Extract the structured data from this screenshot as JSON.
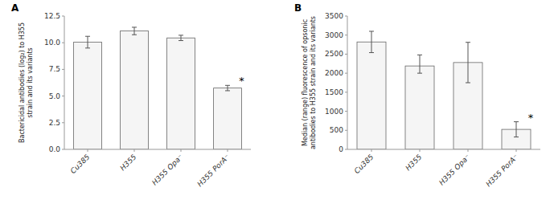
{
  "chart_data": [
    {
      "type": "bar",
      "title": "A",
      "categories": [
        "Cu385",
        "H355",
        "H355 Opa⁻",
        "H355 PorA⁻"
      ],
      "values": [
        10.05,
        11.1,
        10.45,
        5.75
      ],
      "errors_upper": [
        0.55,
        0.35,
        0.25,
        0.25
      ],
      "errors_lower": [
        0.55,
        0.35,
        0.25,
        0.25
      ],
      "annotations": [
        {
          "text": "*",
          "category": "H355 PorA⁻"
        }
      ],
      "ylabel": "Bactericidal antibodies (log₂) to H355\nstrain and its variants",
      "ylim": [
        0,
        12.5
      ],
      "yticks": [
        {
          "value": 0,
          "label": "0.0"
        },
        2.5,
        {
          "value": 5,
          "label": "5.0"
        },
        7.5,
        {
          "value": 10,
          "label": "10.0"
        },
        12.5
      ],
      "color": "#f5f5f5"
    },
    {
      "type": "bar",
      "title": "B",
      "categories": [
        "Cu385",
        "H355",
        "H355 Opa⁻",
        "H355 PorA⁻"
      ],
      "values": [
        2820,
        2190,
        2280,
        525
      ],
      "errors_upper": [
        280,
        290,
        530,
        200
      ],
      "errors_lower": [
        280,
        190,
        530,
        200
      ],
      "annotations": [
        {
          "text": "*",
          "category": "H355 PorA⁻"
        }
      ],
      "ylabel": "Median (range) fluorescence of opsonic\nantibodies to H355 strain and its variants",
      "ylim": [
        0,
        3500
      ],
      "yticks": [
        0,
        500,
        1000,
        1500,
        2000,
        2500,
        3000,
        3500
      ],
      "color": "#f5f5f5"
    }
  ]
}
